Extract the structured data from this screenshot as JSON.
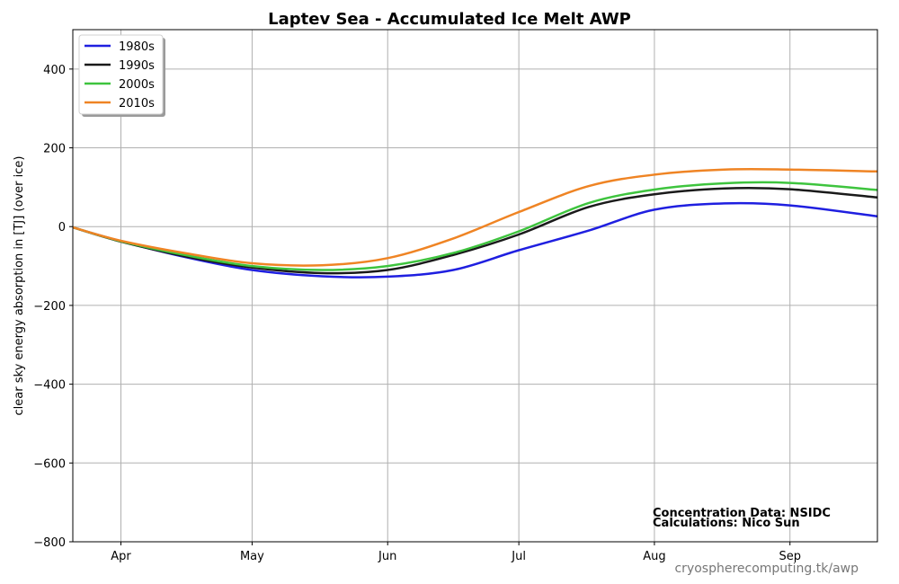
{
  "chart_data": {
    "type": "line",
    "title": "Laptev Sea - Accumulated Ice Melt  AWP",
    "xlabel": "",
    "ylabel": "clear sky energy absorption in  [TJ] (over ice)",
    "x_ticks": [
      "Apr",
      "May",
      "Jun",
      "Jul",
      "Aug",
      "Sep"
    ],
    "x_tick_days": [
      91,
      121,
      152,
      182,
      213,
      244
    ],
    "xlim_days": [
      80,
      264
    ],
    "ylim": [
      -800,
      500
    ],
    "y_ticks": [
      -800,
      -600,
      -400,
      -200,
      0,
      200,
      400
    ],
    "y_tick_labels": [
      "−800",
      "−600",
      "−400",
      "−200",
      "0",
      "200",
      "400"
    ],
    "grid": true,
    "legend_position": "top-left",
    "x_days": [
      80,
      91,
      106,
      121,
      137,
      152,
      167,
      182,
      198,
      213,
      229,
      244,
      264
    ],
    "series": [
      {
        "name": "1980s",
        "color": "#1f1fe0",
        "values": [
          -2,
          -37,
          -78,
          -110,
          -126,
          -127,
          -110,
          -60,
          -10,
          43,
          59,
          54,
          26
        ]
      },
      {
        "name": "1990s",
        "color": "#1a1a1a",
        "values": [
          -2,
          -38,
          -76,
          -104,
          -118,
          -110,
          -72,
          -20,
          50,
          82,
          97,
          95,
          74
        ]
      },
      {
        "name": "2000s",
        "color": "#3ec43e",
        "values": [
          -2,
          -37,
          -73,
          -100,
          -110,
          -100,
          -67,
          -12,
          60,
          94,
          110,
          111,
          93
        ]
      },
      {
        "name": "2010s",
        "color": "#ef8424",
        "values": [
          -2,
          -36,
          -68,
          -93,
          -98,
          -80,
          -30,
          37,
          103,
          132,
          145,
          145,
          140
        ]
      }
    ],
    "annotations": [
      "Concentration Data: NSIDC",
      "Calculations: Nico Sun"
    ],
    "credit": "cryospherecomputing.tk/awp"
  }
}
